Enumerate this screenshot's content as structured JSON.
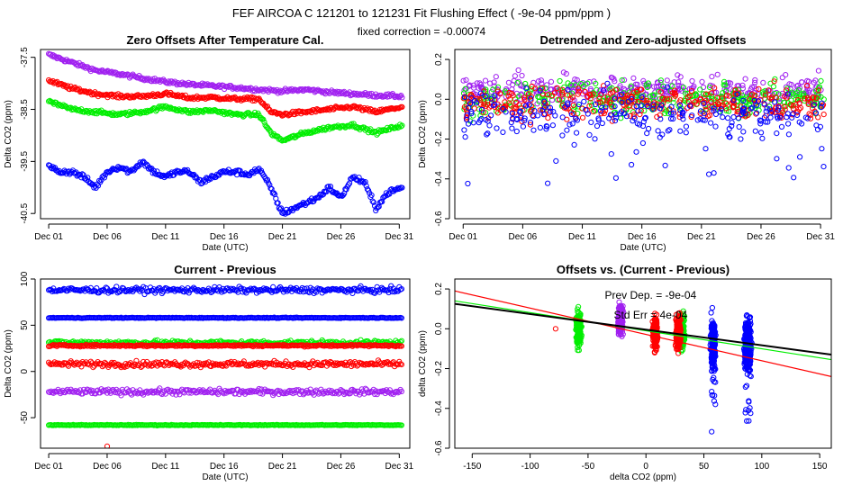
{
  "suptitle": "FEF   AIRCOA C   121201 to 121231   Fit Flushing Effect ( -9e-04 ppm/ppm )",
  "subtitle": "fixed correction = -0.00074",
  "colors": {
    "blue": "#0000ff",
    "red": "#ff0000",
    "green": "#00ee00",
    "purple": "#a020f0",
    "black": "#000000"
  },
  "chart_data": [
    {
      "type": "scatter",
      "title": "Zero Offsets After Temperature Cal.",
      "xlabel": "Date (UTC)",
      "ylabel": "Delta CO2 (ppm)",
      "xlim": [
        0.3,
        31.9
      ],
      "ylim": [
        -40.6,
        -37.35
      ],
      "xticks": [
        1,
        6,
        11,
        16,
        21,
        26,
        31
      ],
      "xticklabels": [
        "Dec 01",
        "Dec 06",
        "Dec 11",
        "Dec 16",
        "Dec 21",
        "Dec 26",
        "Dec 31"
      ],
      "yticks": [
        -37.5,
        -38.5,
        -39.5,
        -40.5
      ],
      "yticklabels": [
        "-37.5",
        "-38.5",
        "-39.5",
        "-40.5"
      ],
      "series": [
        {
          "name": "purple",
          "color": "purple",
          "x": [
            1,
            3,
            5,
            7,
            9,
            11,
            13,
            15,
            17,
            19,
            21,
            23,
            25,
            27,
            29,
            31.3
          ],
          "y": [
            -37.45,
            -37.6,
            -37.75,
            -37.82,
            -37.9,
            -37.97,
            -38.02,
            -38.05,
            -38.08,
            -38.12,
            -38.15,
            -38.12,
            -38.17,
            -38.2,
            -38.23,
            -38.25
          ]
        },
        {
          "name": "red",
          "color": "red",
          "x": [
            1,
            3,
            5,
            7,
            9,
            11,
            13,
            15,
            17,
            19,
            20,
            21,
            23,
            25,
            27,
            29,
            31.3
          ],
          "y": [
            -37.95,
            -38.1,
            -38.2,
            -38.25,
            -38.25,
            -38.2,
            -38.28,
            -38.27,
            -38.3,
            -38.3,
            -38.55,
            -38.6,
            -38.55,
            -38.5,
            -38.45,
            -38.55,
            -38.45
          ]
        },
        {
          "name": "green",
          "color": "green",
          "x": [
            1,
            3,
            5,
            7,
            9,
            11,
            13,
            15,
            17,
            19,
            20,
            21,
            23,
            25,
            27,
            29,
            31.3
          ],
          "y": [
            -38.35,
            -38.5,
            -38.55,
            -38.6,
            -38.55,
            -38.45,
            -38.55,
            -38.52,
            -38.6,
            -38.6,
            -38.95,
            -39.1,
            -38.95,
            -38.85,
            -38.8,
            -38.95,
            -38.8
          ]
        },
        {
          "name": "blue",
          "color": "blue",
          "x": [
            1,
            2,
            3,
            4,
            5,
            6,
            7,
            8,
            9,
            10,
            11,
            12,
            13,
            14,
            15,
            16,
            17,
            18,
            19,
            20,
            21,
            22,
            23,
            24,
            25,
            26,
            27,
            28,
            29,
            30,
            31.3
          ],
          "y": [
            -39.6,
            -39.7,
            -39.7,
            -39.8,
            -40.0,
            -39.7,
            -39.6,
            -39.7,
            -39.5,
            -39.7,
            -39.8,
            -39.7,
            -39.7,
            -39.9,
            -39.8,
            -39.7,
            -39.7,
            -39.75,
            -39.65,
            -40.0,
            -40.5,
            -40.4,
            -40.3,
            -40.2,
            -40.0,
            -40.2,
            -39.8,
            -39.9,
            -40.4,
            -40.1,
            -40.0
          ]
        }
      ]
    },
    {
      "type": "scatter",
      "title": "Detrended and Zero-adjusted Offsets",
      "xlabel": "Date (UTC)",
      "ylabel": "Delta CO2 (ppm)",
      "xlim": [
        0.3,
        31.9
      ],
      "ylim": [
        -0.6,
        0.25
      ],
      "xticks": [
        1,
        6,
        11,
        16,
        21,
        26,
        31
      ],
      "xticklabels": [
        "Dec 01",
        "Dec 06",
        "Dec 11",
        "Dec 16",
        "Dec 21",
        "Dec 26",
        "Dec 31"
      ],
      "yticks": [
        0.2,
        0.0,
        -0.2,
        -0.4,
        -0.6
      ],
      "yticklabels": [
        "0.2",
        "0.0",
        "-0.2",
        "-0.4",
        "-0.6"
      ],
      "series": [
        {
          "name": "purple",
          "color": "purple",
          "x": [
            1,
            31.3
          ],
          "y": [
            0.05,
            0.05
          ],
          "spread": 0.07
        },
        {
          "name": "green",
          "color": "green",
          "x": [
            1,
            31.3
          ],
          "y": [
            0.0,
            0.0
          ],
          "spread": 0.08
        },
        {
          "name": "red",
          "color": "red",
          "x": [
            1,
            31.3
          ],
          "y": [
            -0.02,
            -0.02
          ],
          "spread": 0.08
        },
        {
          "name": "blue",
          "color": "blue",
          "x": [
            1,
            31.3
          ],
          "y": [
            -0.08,
            -0.08
          ],
          "spread": 0.12
        }
      ]
    },
    {
      "type": "scatter",
      "title": "Current - Previous",
      "xlabel": "Date (UTC)",
      "ylabel": "Delta CO2 (ppm)",
      "xlim": [
        0.3,
        31.9
      ],
      "ylim": [
        -83,
        100
      ],
      "xticks": [
        1,
        6,
        11,
        16,
        21,
        26,
        31
      ],
      "xticklabels": [
        "Dec 01",
        "Dec 06",
        "Dec 11",
        "Dec 16",
        "Dec 21",
        "Dec 26",
        "Dec 31"
      ],
      "yticks": [
        100,
        50,
        0,
        -50
      ],
      "yticklabels": [
        "100",
        "50",
        "0",
        "-50"
      ],
      "series": [
        {
          "name": "blue",
          "color": "blue",
          "x": [
            1,
            31.3
          ],
          "y": [
            88,
            88
          ],
          "spread": 3
        },
        {
          "name": "blue",
          "color": "blue",
          "x": [
            1,
            31.3
          ],
          "y": [
            58,
            58
          ],
          "spread": 0.4
        },
        {
          "name": "green",
          "color": "green",
          "x": [
            1,
            31.3
          ],
          "y": [
            31,
            31
          ],
          "spread": 2.5
        },
        {
          "name": "red",
          "color": "red",
          "x": [
            1,
            31.3
          ],
          "y": [
            28,
            28
          ],
          "spread": 1
        },
        {
          "name": "red",
          "color": "red",
          "x": [
            1,
            31.3
          ],
          "y": [
            8,
            8
          ],
          "spread": 3
        },
        {
          "name": "purple",
          "color": "purple",
          "x": [
            1,
            31.3
          ],
          "y": [
            -22,
            -22
          ],
          "spread": 3
        },
        {
          "name": "green",
          "color": "green",
          "x": [
            1,
            31.3
          ],
          "y": [
            -58,
            -58
          ],
          "spread": 0.4
        },
        {
          "name": "red-outlier",
          "color": "red",
          "x": [
            6
          ],
          "y": [
            -81
          ],
          "spread": 0
        }
      ]
    },
    {
      "type": "scatter",
      "title": "Offsets vs. (Current - Previous)",
      "xlabel": "delta CO2 (ppm)",
      "ylabel": "delta CO2 (ppm)",
      "xlim": [
        -165,
        160
      ],
      "ylim": [
        -0.6,
        0.25
      ],
      "xticks": [
        -150,
        -100,
        -50,
        0,
        50,
        100,
        150
      ],
      "xticklabels": [
        "-150",
        "-100",
        "-50",
        "0",
        "50",
        "100",
        "150"
      ],
      "yticks": [
        0.2,
        0.0,
        -0.2,
        -0.4,
        -0.6
      ],
      "yticklabels": [
        "0.2",
        "0.0",
        "-0.2",
        "-0.4",
        "-0.6"
      ],
      "annotations": [
        "Prev Dep. = -9e-04",
        "Std Err = 4e-04"
      ],
      "series": [
        {
          "name": "green",
          "color": "green",
          "x": [
            -58,
            31
          ],
          "y": [
            0.0,
            -0.02
          ],
          "spread": 0.08
        },
        {
          "name": "purple",
          "color": "purple",
          "x": [
            -22
          ],
          "y": [
            0.05
          ],
          "spread": 0.07
        },
        {
          "name": "red",
          "color": "red",
          "x": [
            8,
            28,
            -78
          ],
          "y": [
            -0.02,
            -0.02,
            0.0
          ],
          "spread": 0.08
        },
        {
          "name": "blue",
          "color": "blue",
          "x": [
            58,
            88
          ],
          "y": [
            -0.08,
            -0.08
          ],
          "spread": 0.13
        }
      ],
      "lines": [
        {
          "name": "fit-red",
          "color": "red",
          "x": [
            -165,
            160
          ],
          "y": [
            0.19,
            -0.24
          ]
        },
        {
          "name": "fit-green",
          "color": "green",
          "x": [
            -165,
            160
          ],
          "y": [
            0.14,
            -0.155
          ]
        },
        {
          "name": "fit-black",
          "color": "black",
          "x": [
            -165,
            160
          ],
          "y": [
            0.125,
            -0.13
          ]
        }
      ]
    }
  ]
}
